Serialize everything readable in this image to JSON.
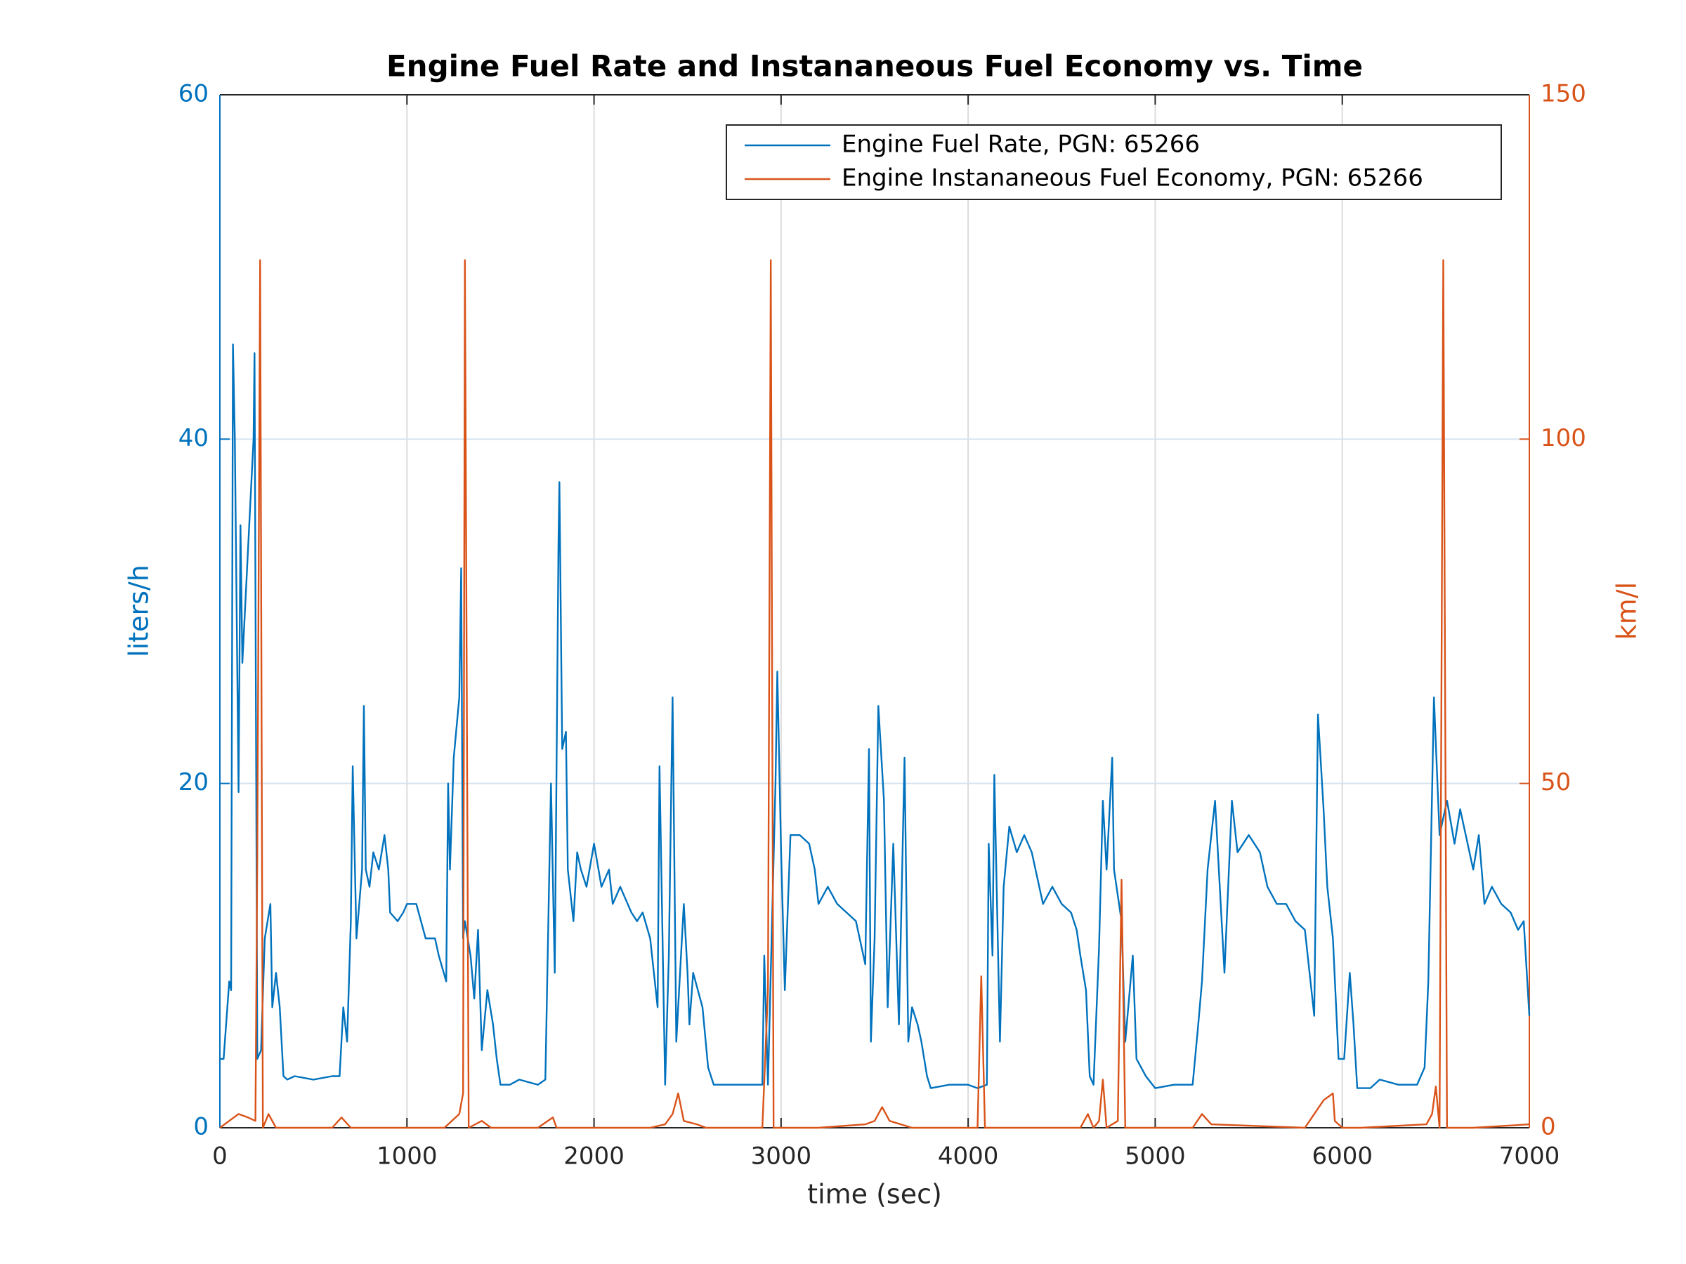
{
  "chart_data": {
    "type": "line",
    "title": "Engine Fuel Rate and Instananeous Fuel Economy vs. Time",
    "xlabel": "time (sec)",
    "ylabel": "liters/h",
    "y2label": "km/l",
    "xlim": [
      0,
      7000
    ],
    "xticks": [
      0,
      1000,
      2000,
      3000,
      4000,
      5000,
      6000,
      7000
    ],
    "ylim": [
      0,
      60
    ],
    "yticks": [
      0,
      20,
      40,
      60
    ],
    "y2lim": [
      0,
      150
    ],
    "y2ticks": [
      0,
      50,
      100,
      150
    ],
    "grid": true,
    "legend": "upper right",
    "series": [
      {
        "name": "Engine Fuel Rate, PGN: 65266",
        "color": "#0072bd",
        "axis": "y",
        "x": [
          0,
          20,
          50,
          60,
          70,
          80,
          100,
          110,
          120,
          180,
          185,
          200,
          220,
          240,
          270,
          280,
          300,
          320,
          340,
          360,
          400,
          500,
          600,
          640,
          660,
          680,
          700,
          710,
          730,
          760,
          770,
          780,
          800,
          820,
          850,
          880,
          900,
          910,
          950,
          980,
          1000,
          1050,
          1100,
          1150,
          1170,
          1210,
          1220,
          1230,
          1250,
          1280,
          1290,
          1300,
          1310,
          1340,
          1360,
          1380,
          1400,
          1430,
          1460,
          1480,
          1500,
          1550,
          1600,
          1700,
          1740,
          1770,
          1790,
          1810,
          1815,
          1830,
          1850,
          1860,
          1890,
          1910,
          1930,
          1960,
          2000,
          2040,
          2080,
          2100,
          2140,
          2180,
          2200,
          2230,
          2260,
          2300,
          2340,
          2350,
          2380,
          2400,
          2420,
          2440,
          2480,
          2500,
          2510,
          2530,
          2580,
          2610,
          2640,
          2700,
          2800,
          2900,
          2910,
          2930,
          2970,
          2980,
          3000,
          3020,
          3050,
          3100,
          3150,
          3180,
          3200,
          3250,
          3300,
          3350,
          3400,
          3450,
          3470,
          3480,
          3500,
          3520,
          3550,
          3570,
          3600,
          3630,
          3660,
          3680,
          3700,
          3730,
          3750,
          3780,
          3800,
          3900,
          4000,
          4050,
          4100,
          4110,
          4130,
          4140,
          4170,
          4190,
          4220,
          4260,
          4300,
          4340,
          4400,
          4450,
          4500,
          4550,
          4580,
          4600,
          4630,
          4650,
          4670,
          4700,
          4720,
          4740,
          4770,
          4780,
          4820,
          4840,
          4880,
          4900,
          4950,
          5000,
          5100,
          5200,
          5230,
          5250,
          5280,
          5320,
          5340,
          5370,
          5410,
          5440,
          5500,
          5560,
          5600,
          5650,
          5700,
          5750,
          5800,
          5850,
          5870,
          5900,
          5920,
          5950,
          5980,
          6010,
          6040,
          6060,
          6080,
          6150,
          6200,
          6300,
          6400,
          6440,
          6460,
          6490,
          6520,
          6560,
          6600,
          6630,
          6660,
          6700,
          6730,
          6760,
          6800,
          6850,
          6900,
          6940,
          6970,
          7000
        ],
        "values": [
          4,
          4,
          8.5,
          8,
          45.5,
          40,
          19.5,
          35,
          27,
          40,
          45,
          4,
          4.5,
          11,
          13,
          7,
          9,
          7,
          3,
          2.8,
          3,
          2.8,
          3,
          3,
          7,
          5,
          12,
          21,
          11,
          15,
          24.5,
          15,
          14,
          16,
          15,
          17,
          15,
          12.5,
          12,
          12.5,
          13,
          13,
          11,
          11,
          10,
          8.5,
          20,
          15,
          21.5,
          25,
          32.5,
          11,
          12,
          10,
          7.5,
          11.5,
          4.5,
          8,
          6,
          4,
          2.5,
          2.5,
          2.8,
          2.5,
          2.8,
          20,
          9,
          34,
          37.5,
          22,
          23,
          15,
          12,
          16,
          15,
          14,
          16.5,
          14,
          15,
          13,
          14,
          13,
          12.5,
          12,
          12.5,
          11,
          7,
          21,
          2.5,
          10,
          25,
          5,
          13,
          9,
          6,
          9,
          7,
          3.5,
          2.5,
          2.5,
          2.5,
          2.5,
          10,
          2.5,
          20,
          26.5,
          16,
          8,
          17,
          17,
          16.5,
          15,
          13,
          14,
          13,
          12.5,
          12,
          9.5,
          22,
          5,
          11,
          24.5,
          19,
          7,
          16.5,
          6,
          21.5,
          5,
          7,
          6,
          5,
          3,
          2.3,
          2.5,
          2.5,
          2.3,
          2.5,
          16.5,
          10,
          20.5,
          5,
          14,
          17.5,
          16,
          17,
          16,
          13,
          14,
          13,
          12.5,
          11.5,
          10,
          8,
          3,
          2.5,
          10.5,
          19,
          15,
          21.5,
          15,
          12,
          5,
          10,
          4,
          3,
          2.3,
          2.5,
          2.5,
          6,
          8.5,
          15,
          19,
          15,
          9,
          19,
          16,
          17,
          16,
          14,
          13,
          13,
          12,
          11.5,
          6.5,
          24,
          18.5,
          14,
          11,
          4,
          4,
          9,
          6,
          2.3,
          2.3,
          2.8,
          2.5,
          2.5,
          3.5,
          8.5,
          25,
          17,
          19,
          16.5,
          18.5,
          17,
          15,
          17,
          13,
          14,
          13,
          12.5,
          11.5,
          12,
          6.5
        ]
      },
      {
        "name": "Engine Instananeous Fuel Economy, PGN: 65266",
        "color": "#d95319",
        "axis": "y2",
        "x": [
          0,
          50,
          100,
          150,
          190,
          200,
          215,
          230,
          260,
          300,
          400,
          600,
          650,
          700,
          1000,
          1200,
          1280,
          1300,
          1310,
          1330,
          1400,
          1450,
          1700,
          1780,
          1800,
          2300,
          2380,
          2420,
          2450,
          2480,
          2550,
          2600,
          2900,
          2930,
          2945,
          2960,
          3200,
          3450,
          3500,
          3540,
          3580,
          3700,
          4050,
          4070,
          4090,
          4150,
          4600,
          4640,
          4670,
          4700,
          4720,
          4740,
          4800,
          4820,
          4840,
          4900,
          5200,
          5250,
          5300,
          5800,
          5850,
          5900,
          5950,
          5960,
          6000,
          6100,
          6450,
          6480,
          6500,
          6520,
          6540,
          6560,
          6700,
          7000
        ],
        "values": [
          0,
          1,
          2,
          1.5,
          1,
          40,
          126,
          0,
          2,
          0,
          0,
          0,
          1.5,
          0,
          0,
          0,
          2,
          5,
          126,
          0,
          1,
          0,
          0,
          1.5,
          0,
          0,
          0.5,
          2,
          5,
          1,
          0.5,
          0,
          0,
          20,
          126,
          0,
          0,
          0.5,
          1,
          3,
          1,
          0,
          0,
          22,
          0,
          0,
          0,
          2,
          0,
          1,
          7,
          0,
          1,
          36,
          0,
          0,
          0,
          2,
          0.5,
          0,
          2,
          4,
          5,
          1,
          0,
          0,
          0.5,
          2,
          6,
          0,
          126,
          0,
          0,
          0.5
        ]
      }
    ]
  }
}
